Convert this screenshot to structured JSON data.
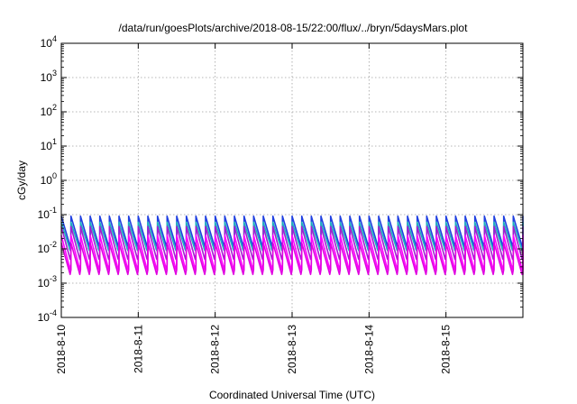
{
  "chart_data": {
    "type": "line",
    "title": "/data/run/goesPlots/archive/2018-08-15/22:00/flux/../bryn/5daysMars.plot",
    "xlabel": "Coordinated Universal Time (UTC)",
    "ylabel": "cGy/day",
    "y_scale": "log",
    "ylim": [
      0.0001,
      10000
    ],
    "y_ticks": [
      {
        "base": "10",
        "exp": "4"
      },
      {
        "base": "10",
        "exp": "3"
      },
      {
        "base": "10",
        "exp": "2"
      },
      {
        "base": "10",
        "exp": "1"
      },
      {
        "base": "10",
        "exp": "0"
      },
      {
        "base": "10",
        "exp": "-1"
      },
      {
        "base": "10",
        "exp": "-2"
      },
      {
        "base": "10",
        "exp": "-3"
      },
      {
        "base": "10",
        "exp": "-4"
      }
    ],
    "x_ticks": [
      "2018-8-10",
      "2018-8-11",
      "2018-8-12",
      "2018-8-13",
      "2018-8-14",
      "2018-8-15"
    ],
    "xlim": [
      "2018-08-10T00:00",
      "2018-08-16T00:00"
    ],
    "grid": true,
    "sawtooth_period_hours": 3,
    "series": [
      {
        "color": "#2040e0",
        "peak": 0.09,
        "trough": 0.012
      },
      {
        "color": "#20b0c0",
        "peak": 0.06,
        "trough": 0.009
      },
      {
        "color": "#a020d0",
        "peak": 0.045,
        "trough": 0.005
      },
      {
        "color": "#ff00ff",
        "peak": 0.025,
        "trough": 0.0025
      },
      {
        "color": "#e000e0",
        "peak": 0.015,
        "trough": 0.0018
      }
    ]
  }
}
